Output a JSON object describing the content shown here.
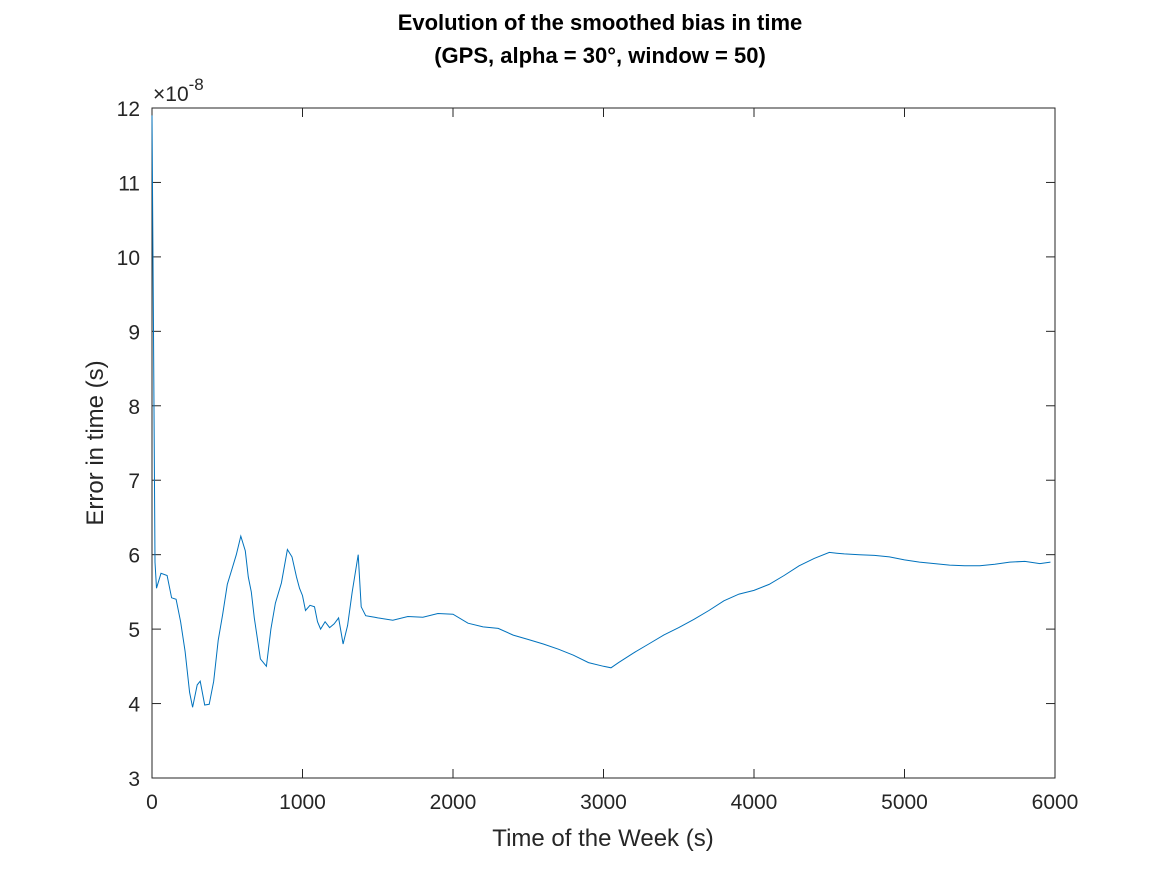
{
  "chart_data": {
    "type": "line",
    "title": "Evolution of the smoothed bias in time",
    "subtitle": "(GPS, alpha = 30°, window = 50)",
    "xlabel": "Time of the Week (s)",
    "ylabel": "Error in time (s)",
    "y_exponent_label": "×10",
    "y_exponent_power": "-8",
    "xlim": [
      0,
      6000
    ],
    "ylim": [
      3,
      12
    ],
    "x_ticks": [
      0,
      1000,
      2000,
      3000,
      4000,
      5000,
      6000
    ],
    "x_tick_labels": [
      "0",
      "1000",
      "2000",
      "3000",
      "4000",
      "5000",
      "6000"
    ],
    "y_ticks": [
      3,
      4,
      5,
      6,
      7,
      8,
      9,
      10,
      11,
      12
    ],
    "y_tick_labels": [
      "3",
      "4",
      "5",
      "6",
      "7",
      "8",
      "9",
      "10",
      "11",
      "12"
    ],
    "grid": false,
    "box": true,
    "line_color": "#0072BD",
    "series": [
      {
        "x": [
          0,
          10,
          20,
          30,
          60,
          100,
          130,
          160,
          190,
          220,
          250,
          270,
          300,
          320,
          350,
          380,
          410,
          440,
          470,
          500,
          530,
          560,
          590,
          620,
          640,
          660,
          680,
          720,
          760,
          790,
          820,
          860,
          900,
          930,
          960,
          980,
          1000,
          1020,
          1050,
          1080,
          1100,
          1120,
          1150,
          1180,
          1210,
          1240,
          1270,
          1300,
          1330,
          1370,
          1390,
          1420,
          1450,
          1480,
          1500,
          1600,
          1700,
          1800,
          1900,
          2000,
          2100,
          2200,
          2300,
          2400,
          2500,
          2600,
          2700,
          2800,
          2900,
          3000,
          3050,
          3100,
          3200,
          3300,
          3400,
          3500,
          3600,
          3700,
          3800,
          3900,
          4000,
          4100,
          4200,
          4300,
          4400,
          4500,
          4550,
          4600,
          4700,
          4800,
          4900,
          5000,
          5100,
          5200,
          5300,
          5400,
          5500,
          5600,
          5700,
          5800,
          5900,
          5970
        ],
        "y": [
          11.9,
          9.0,
          5.9,
          5.55,
          5.75,
          5.72,
          5.42,
          5.4,
          5.1,
          4.7,
          4.15,
          3.95,
          4.25,
          4.3,
          3.98,
          3.99,
          4.3,
          4.85,
          5.2,
          5.6,
          5.8,
          6.0,
          6.25,
          6.05,
          5.7,
          5.5,
          5.15,
          4.6,
          4.5,
          5.0,
          5.35,
          5.62,
          6.07,
          5.97,
          5.7,
          5.55,
          5.45,
          5.25,
          5.32,
          5.3,
          5.1,
          5.0,
          5.1,
          5.02,
          5.07,
          5.15,
          4.8,
          5.05,
          5.5,
          6.0,
          5.3,
          5.18,
          5.17,
          5.16,
          5.15,
          5.12,
          5.17,
          5.16,
          5.21,
          5.2,
          5.08,
          5.03,
          5.01,
          4.92,
          4.86,
          4.8,
          4.73,
          4.65,
          4.55,
          4.5,
          4.48,
          4.55,
          4.68,
          4.8,
          4.92,
          5.02,
          5.13,
          5.25,
          5.38,
          5.47,
          5.52,
          5.6,
          5.72,
          5.85,
          5.95,
          6.03,
          6.02,
          6.01,
          6.0,
          5.99,
          5.97,
          5.93,
          5.9,
          5.88,
          5.86,
          5.85,
          5.85,
          5.87,
          5.9,
          5.91,
          5.88,
          5.9
        ]
      }
    ]
  }
}
